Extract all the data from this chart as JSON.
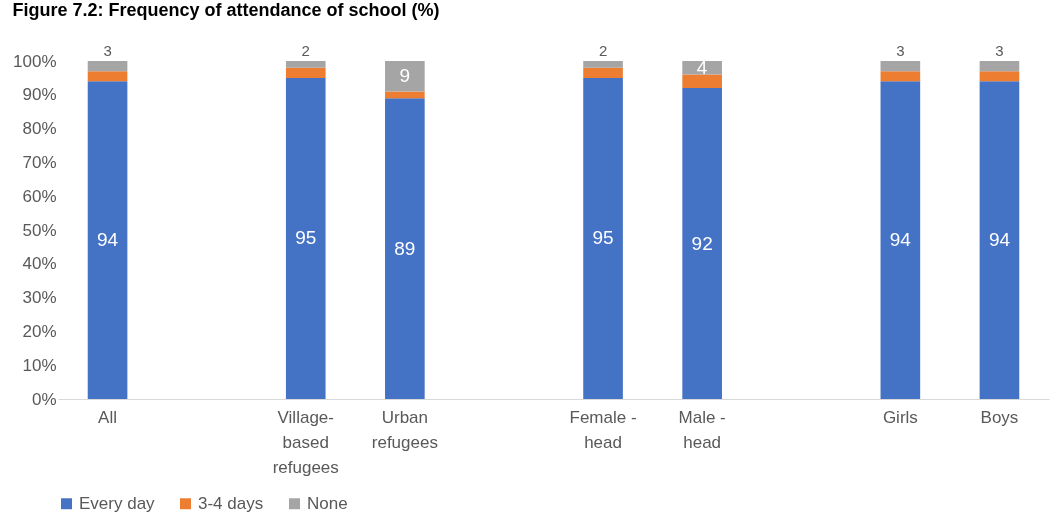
{
  "chart_data": {
    "type": "bar",
    "title": "Figure 7.2: Frequency of attendance of school (%)",
    "stacked": true,
    "categories": [
      "All",
      null,
      "Village-based refugees",
      "Urban refugees",
      null,
      "Female - head",
      "Male - head",
      null,
      "Girls",
      "Boys"
    ],
    "series": [
      {
        "name": "Every day",
        "color": "#4472c4",
        "values": [
          94,
          null,
          95,
          89,
          null,
          95,
          92,
          null,
          94,
          94
        ],
        "value_labels": [
          "94",
          null,
          "95",
          "89",
          null,
          "95",
          "92",
          null,
          "94",
          "94"
        ]
      },
      {
        "name": "3-4 days",
        "color": "#ed7d31",
        "values": [
          3,
          null,
          3,
          2,
          null,
          3,
          4,
          null,
          3,
          3
        ]
      },
      {
        "name": "None",
        "color": "#a5a5a5",
        "values": [
          3,
          null,
          2,
          9,
          null,
          2,
          4,
          null,
          3,
          3
        ],
        "value_labels": [
          "3",
          null,
          "2",
          "9",
          null,
          "2",
          "4",
          null,
          "3",
          "3"
        ]
      }
    ],
    "ylim": [
      0,
      100
    ],
    "yticks": [
      {
        "value": 0,
        "label": "0%"
      },
      {
        "value": 10,
        "label": "10%"
      },
      {
        "value": 20,
        "label": "20%"
      },
      {
        "value": 30,
        "label": "30%"
      },
      {
        "value": 40,
        "label": "40%"
      },
      {
        "value": 50,
        "label": "50%"
      },
      {
        "value": 60,
        "label": "60%"
      },
      {
        "value": 70,
        "label": "70%"
      },
      {
        "value": 80,
        "label": "80%"
      },
      {
        "value": 90,
        "label": "90%"
      },
      {
        "value": 100,
        "label": "100%"
      }
    ],
    "grid": false,
    "legend": "bottom"
  }
}
